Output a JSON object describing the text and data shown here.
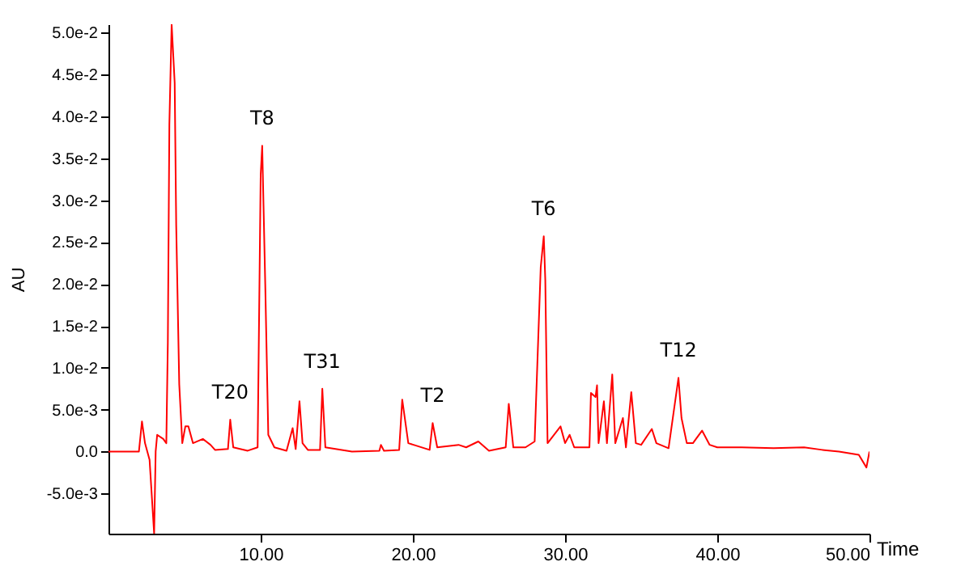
{
  "chart_data": {
    "type": "line",
    "xlabel": "Time",
    "ylabel": "AU",
    "xlim": [
      0,
      50
    ],
    "ylim": [
      -0.0098,
      0.051
    ],
    "xticks": [
      {
        "value": 10,
        "label": "10.00"
      },
      {
        "value": 20,
        "label": "20.00"
      },
      {
        "value": 30,
        "label": "30.00"
      },
      {
        "value": 40,
        "label": "40.00"
      },
      {
        "value": 50,
        "label": "50.00"
      }
    ],
    "yticks": [
      {
        "value": -0.005,
        "label": "-5.0e-3"
      },
      {
        "value": 0,
        "label": "0.0"
      },
      {
        "value": 0.005,
        "label": "5.0e-3"
      },
      {
        "value": 0.01,
        "label": "1.0e-2"
      },
      {
        "value": 0.015,
        "label": "1.5e-2"
      },
      {
        "value": 0.02,
        "label": "2.0e-2"
      },
      {
        "value": 0.025,
        "label": "2.5e-2"
      },
      {
        "value": 0.03,
        "label": "3.0e-2"
      },
      {
        "value": 0.035,
        "label": "3.5e-2"
      },
      {
        "value": 0.04,
        "label": "4.0e-2"
      },
      {
        "value": 0.045,
        "label": "4.5e-2"
      },
      {
        "value": 0.05,
        "label": "5.0e-2"
      }
    ],
    "grid": false,
    "marker": "none",
    "line_style": "solid",
    "series": [
      {
        "color": "#ff0000",
        "x": [
          0,
          2.0,
          2.2,
          2.4,
          2.7,
          3.0,
          3.1,
          3.2,
          3.6,
          3.8,
          3.9,
          4.0,
          4.15,
          4.35,
          4.45,
          4.65,
          4.85,
          5.05,
          5.25,
          5.55,
          6.2,
          6.7,
          7.0,
          7.85,
          8.0,
          8.2,
          9.15,
          9.8,
          10.0,
          10.1,
          10.3,
          10.5,
          10.9,
          11.7,
          12.1,
          12.3,
          12.55,
          12.75,
          13.1,
          13.9,
          14.05,
          14.25,
          16.0,
          17.8,
          17.9,
          18.1,
          19.1,
          19.3,
          19.7,
          21.1,
          21.3,
          21.6,
          23.0,
          23.5,
          24.3,
          25.0,
          26.1,
          26.3,
          26.6,
          27.4,
          28.0,
          28.4,
          28.6,
          28.7,
          28.85,
          29.7,
          30.0,
          30.3,
          30.6,
          31.6,
          31.7,
          32.0,
          32.1,
          32.2,
          32.55,
          32.75,
          33.1,
          33.3,
          33.8,
          34.0,
          34.35,
          34.65,
          35.0,
          35.7,
          36.0,
          36.8,
          37.45,
          37.65,
          38.0,
          38.4,
          38.6,
          39.0,
          39.5,
          40.0,
          41.6,
          43.7,
          45.7,
          46.9,
          48.0,
          49.3,
          49.8,
          50.0
        ],
        "values": [
          0,
          0,
          0.0036,
          0.001,
          -0.001,
          -0.0098,
          0.0,
          0.002,
          0.0015,
          0.001,
          0.013,
          0.039,
          0.051,
          0.044,
          0.027,
          0.008,
          0.001,
          0.003,
          0.003,
          0.001,
          0.0015,
          0.0008,
          0.0002,
          0.0003,
          0.0038,
          0.0005,
          0.0001,
          0.0005,
          0.033,
          0.0365,
          0.02,
          0.002,
          0.0005,
          0.0001,
          0.0028,
          0.0003,
          0.006,
          0.001,
          0.0002,
          0.0002,
          0.0075,
          0.0005,
          0,
          0.0001,
          0.0008,
          0.0001,
          0.0002,
          0.0062,
          0.001,
          0.0002,
          0.0034,
          0.0005,
          0.0008,
          0.0005,
          0.0012,
          0.0001,
          0.0005,
          0.0057,
          0.0005,
          0.0005,
          0.0012,
          0.022,
          0.0257,
          0.0205,
          0.001,
          0.003,
          0.001,
          0.002,
          0.0005,
          0.0005,
          0.007,
          0.0065,
          0.0079,
          0.001,
          0.006,
          0.001,
          0.0092,
          0.001,
          0.004,
          0.0005,
          0.0071,
          0.001,
          0.0008,
          0.0027,
          0.001,
          0.0004,
          0.0088,
          0.004,
          0.001,
          0.001,
          0.0015,
          0.0025,
          0.0008,
          0.0005,
          0.0005,
          0.0004,
          0.0005,
          0.0002,
          0.0,
          -0.0004,
          -0.0019,
          0.0
        ]
      }
    ],
    "annotations": [
      {
        "text": "T20",
        "x": 8.0,
        "y": 0.0038
      },
      {
        "text": "T8",
        "x": 10.1,
        "y": 0.0365
      },
      {
        "text": "T31",
        "x": 14.05,
        "y": 0.0075
      },
      {
        "text": "T2",
        "x": 21.3,
        "y": 0.0034
      },
      {
        "text": "T6",
        "x": 28.6,
        "y": 0.0257
      },
      {
        "text": "T12",
        "x": 37.45,
        "y": 0.0088
      }
    ]
  }
}
